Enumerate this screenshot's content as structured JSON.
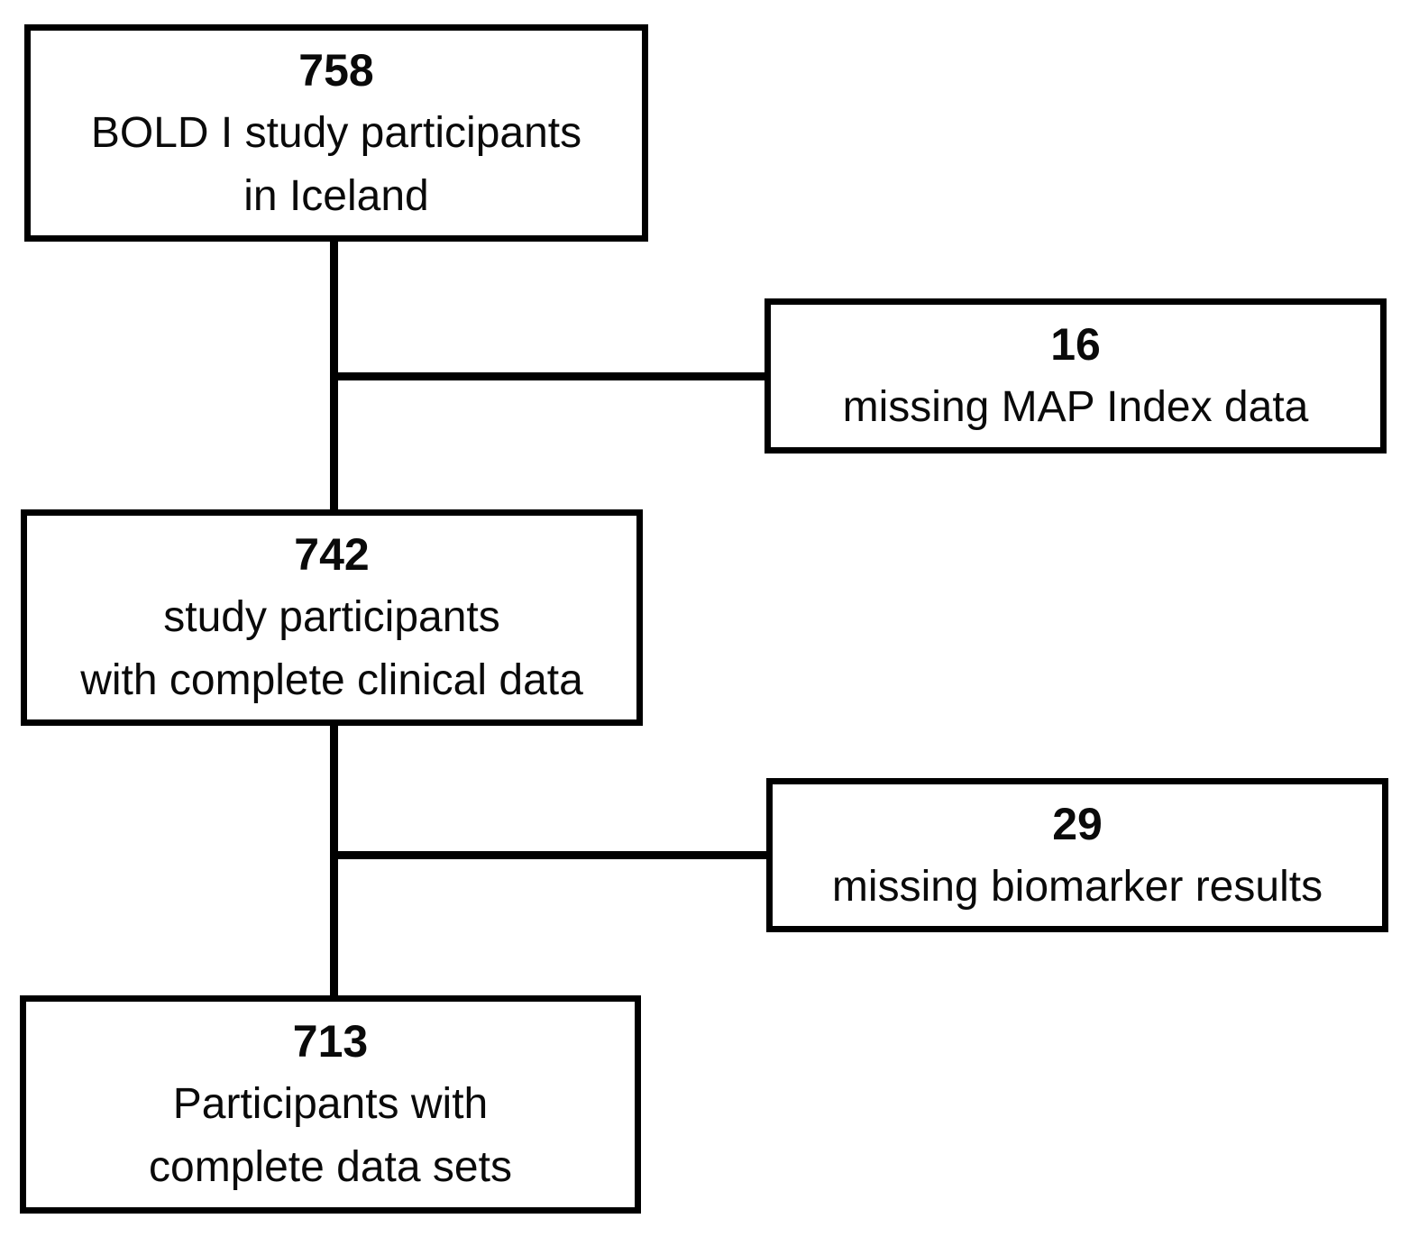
{
  "flowchart": {
    "title_semantic": "study participant flow diagram",
    "colors": {
      "line": "#000000",
      "background": "#ffffff",
      "text": "#0a0a0a"
    },
    "boxes": [
      {
        "id": "box-758",
        "count": "758",
        "lines": [
          "BOLD I study participants",
          "in Iceland"
        ]
      },
      {
        "id": "box-16",
        "count": "16",
        "lines": [
          "missing MAP Index data"
        ]
      },
      {
        "id": "box-742",
        "count": "742",
        "lines": [
          "study participants",
          "with complete clinical data"
        ]
      },
      {
        "id": "box-29",
        "count": "29",
        "lines": [
          "missing biomarker results"
        ]
      },
      {
        "id": "box-713",
        "count": "713",
        "lines": [
          "Participants with",
          "complete data sets"
        ]
      }
    ]
  }
}
